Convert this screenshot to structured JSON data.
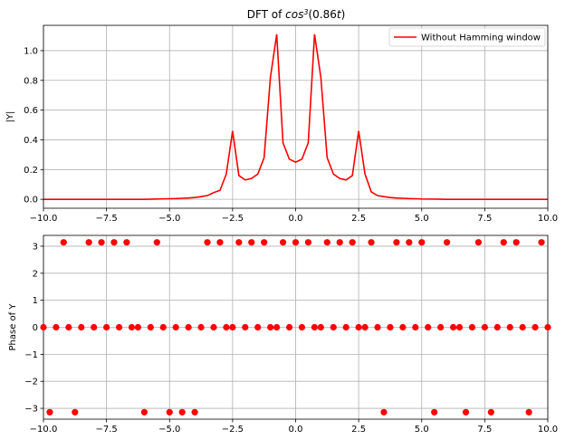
{
  "chart_data": [
    {
      "type": "line",
      "title_prefix": "DFT of ",
      "title_func": "cos",
      "title_exp": "3",
      "title_arg_open": "(0.86",
      "title_arg_var": "t",
      "title_arg_close": ")",
      "xlabel": "",
      "ylabel": "|Y|",
      "xlim": [
        -10,
        10
      ],
      "ylim": [
        -0.06,
        1.17
      ],
      "xticks": [
        -10,
        -7.5,
        -5,
        -2.5,
        0,
        2.5,
        5,
        7.5,
        10
      ],
      "xtick_labels": [
        "−10.0",
        "−7.5",
        "−5.0",
        "−2.5",
        "0.0",
        "2.5",
        "5.0",
        "7.5",
        "10.0"
      ],
      "yticks": [
        0,
        0.2,
        0.4,
        0.6,
        0.8,
        1.0
      ],
      "ytick_labels": [
        "0.0",
        "0.2",
        "0.4",
        "0.6",
        "0.8",
        "1.0"
      ],
      "grid": true,
      "legend_position": "top-right",
      "series": [
        {
          "name": "Without Hamming window",
          "color": "#ff0000",
          "x": [
            -10,
            -9,
            -8,
            -7,
            -6,
            -5.5,
            -5,
            -4.75,
            -4.5,
            -4.25,
            -4,
            -3.75,
            -3.5,
            -3.25,
            -3,
            -2.75,
            -2.5,
            -2.25,
            -2,
            -1.75,
            -1.5,
            -1.25,
            -1,
            -0.75,
            -0.5,
            -0.25,
            0,
            0.25,
            0.5,
            0.75,
            1,
            1.25,
            1.5,
            1.75,
            2,
            2.25,
            2.5,
            2.75,
            3,
            3.25,
            3.5,
            3.75,
            4,
            4.25,
            4.5,
            4.75,
            5,
            5.5,
            6,
            7,
            8,
            9,
            10
          ],
          "y": [
            0,
            0,
            0,
            0,
            0,
            0.002,
            0.004,
            0.005,
            0.007,
            0.009,
            0.012,
            0.018,
            0.025,
            0.045,
            0.06,
            0.17,
            0.46,
            0.16,
            0.13,
            0.14,
            0.17,
            0.28,
            0.82,
            1.11,
            0.38,
            0.27,
            0.25,
            0.27,
            0.38,
            1.11,
            0.82,
            0.28,
            0.17,
            0.14,
            0.13,
            0.16,
            0.46,
            0.17,
            0.05,
            0.025,
            0.018,
            0.012,
            0.009,
            0.007,
            0.005,
            0.004,
            0.002,
            0.001,
            0,
            0,
            0,
            0,
            0
          ]
        }
      ]
    },
    {
      "type": "scatter",
      "xlabel": "",
      "ylabel": "Phase of Y",
      "xlim": [
        -10,
        10
      ],
      "ylim": [
        -3.4,
        3.4
      ],
      "xticks": [
        -10,
        -7.5,
        -5,
        -2.5,
        0,
        2.5,
        5,
        7.5,
        10
      ],
      "xtick_labels": [
        "−10.0",
        "−7.5",
        "−5.0",
        "−2.5",
        "0.0",
        "2.5",
        "5.0",
        "7.5",
        "10.0"
      ],
      "yticks": [
        -3,
        -2,
        -1,
        0,
        1,
        2,
        3
      ],
      "ytick_labels": [
        "−3",
        "−2",
        "−1",
        "0",
        "1",
        "2",
        "3"
      ],
      "grid": true,
      "series": [
        {
          "color": "#ff0000",
          "points": [
            [
              -9.2,
              3.1416
            ],
            [
              -8.2,
              3.1416
            ],
            [
              -7.7,
              3.1416
            ],
            [
              -7.2,
              3.1416
            ],
            [
              -6.7,
              3.1416
            ],
            [
              -5.5,
              3.1416
            ],
            [
              -3.5,
              3.1416
            ],
            [
              -3.0,
              3.1416
            ],
            [
              -2.25,
              3.1416
            ],
            [
              -1.75,
              3.1416
            ],
            [
              -1.25,
              3.1416
            ],
            [
              -0.5,
              3.1416
            ],
            [
              0.0,
              3.1416
            ],
            [
              0.5,
              3.1416
            ],
            [
              1.25,
              3.1416
            ],
            [
              1.75,
              3.1416
            ],
            [
              2.25,
              3.1416
            ],
            [
              3.0,
              3.1416
            ],
            [
              4.0,
              3.1416
            ],
            [
              4.5,
              3.1416
            ],
            [
              5.0,
              3.1416
            ],
            [
              6.0,
              3.1416
            ],
            [
              7.25,
              3.1416
            ],
            [
              8.25,
              3.1416
            ],
            [
              8.75,
              3.1416
            ],
            [
              9.75,
              3.1416
            ],
            [
              -10.0,
              0
            ],
            [
              -9.5,
              0
            ],
            [
              -9.0,
              0
            ],
            [
              -8.5,
              0
            ],
            [
              -8.0,
              0
            ],
            [
              -7.5,
              0
            ],
            [
              -7.0,
              0
            ],
            [
              -6.5,
              0
            ],
            [
              -6.25,
              0
            ],
            [
              -5.75,
              0
            ],
            [
              -5.25,
              0
            ],
            [
              -4.75,
              0
            ],
            [
              -4.25,
              0
            ],
            [
              -3.75,
              0
            ],
            [
              -3.25,
              0
            ],
            [
              -2.75,
              0
            ],
            [
              -2.5,
              0
            ],
            [
              -2.0,
              0
            ],
            [
              -1.5,
              0
            ],
            [
              -1.0,
              0
            ],
            [
              -0.75,
              0
            ],
            [
              -0.25,
              0
            ],
            [
              0.25,
              0
            ],
            [
              0.75,
              0
            ],
            [
              1.0,
              0
            ],
            [
              1.5,
              0
            ],
            [
              2.0,
              0
            ],
            [
              2.5,
              0
            ],
            [
              2.75,
              0
            ],
            [
              3.25,
              0
            ],
            [
              3.75,
              0
            ],
            [
              4.25,
              0
            ],
            [
              4.75,
              0
            ],
            [
              5.25,
              0
            ],
            [
              5.75,
              0
            ],
            [
              6.25,
              0
            ],
            [
              6.5,
              0
            ],
            [
              7.0,
              0
            ],
            [
              7.5,
              0
            ],
            [
              8.0,
              0
            ],
            [
              8.5,
              0
            ],
            [
              9.0,
              0
            ],
            [
              9.5,
              0
            ],
            [
              10.0,
              0
            ],
            [
              -9.75,
              -3.1416
            ],
            [
              -8.75,
              -3.1416
            ],
            [
              -6.0,
              -3.1416
            ],
            [
              -5.0,
              -3.1416
            ],
            [
              -4.5,
              -3.1416
            ],
            [
              -4.0,
              -3.1416
            ],
            [
              3.5,
              -3.1416
            ],
            [
              5.5,
              -3.1416
            ],
            [
              6.75,
              -3.1416
            ],
            [
              7.75,
              -3.1416
            ],
            [
              9.25,
              -3.1416
            ]
          ]
        }
      ]
    }
  ]
}
